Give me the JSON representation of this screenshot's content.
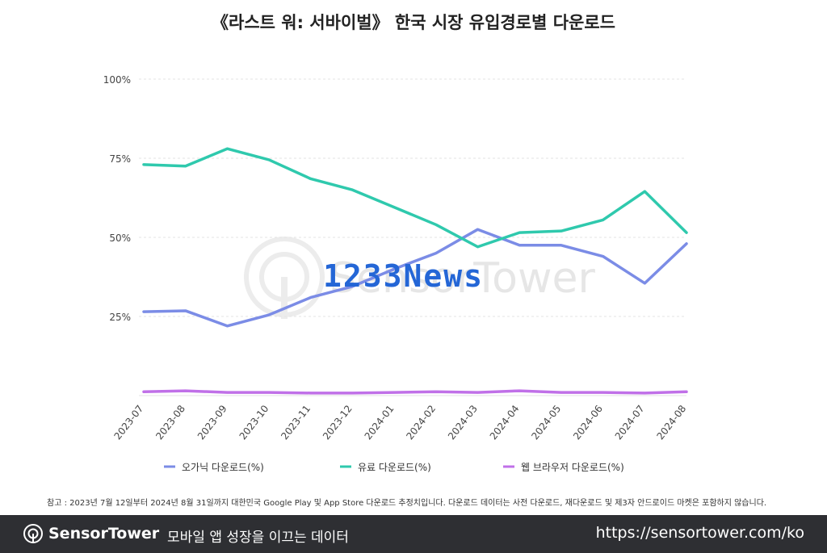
{
  "title": "《라스트 워: 서바이벌》 한국 시장 유입경로별 다운로드",
  "chart_data": {
    "type": "line",
    "categories": [
      "2023-07",
      "2023-08",
      "2023-09",
      "2023-10",
      "2023-11",
      "2023-12",
      "2024-01",
      "2024-02",
      "2024-03",
      "2024-04",
      "2024-05",
      "2024-06",
      "2024-07",
      "2024-08"
    ],
    "y_ticks": [
      "100%",
      "75%",
      "50%",
      "25%"
    ],
    "ylim": [
      0,
      100
    ],
    "grid": true,
    "legend_position": "bottom",
    "series": [
      {
        "name": "오가닉 다운로드(%)",
        "color": "#7b8ce6",
        "values": [
          26.5,
          26.8,
          22,
          25.5,
          31,
          34.5,
          40,
          45,
          52.5,
          47.5,
          47.5,
          44,
          35.5,
          48
        ]
      },
      {
        "name": "유료 다운로드(%)",
        "color": "#2fc9ad",
        "values": [
          73,
          72.5,
          78,
          74.5,
          68.5,
          65,
          59.5,
          54,
          47,
          51.5,
          52,
          55.5,
          64.5,
          51.5
        ]
      },
      {
        "name": "웹 브라우저 다운로드(%)",
        "color": "#c070e8",
        "values": [
          1.2,
          1.5,
          1,
          1,
          0.8,
          0.8,
          1,
          1.2,
          1,
          1.5,
          1,
          1,
          0.8,
          1.2
        ]
      }
    ]
  },
  "watermark": {
    "text": "SensorTower",
    "overlay": "1233News"
  },
  "note": "참고 : 2023년 7월 12일부터 2024년 8월 31일까지 대한민국 Google Play 및 App Store 다운로드 추정치입니다. 다운로드 데이터는 사전 다운로드, 재다운로드 및 제3자 안드로이드 마켓은 포함하지 않습니다.",
  "footer": {
    "brand": "SensorTower",
    "tagline": "모바일 앱 성장을 이끄는 데이터",
    "url": "https://sensortower.com/ko"
  }
}
